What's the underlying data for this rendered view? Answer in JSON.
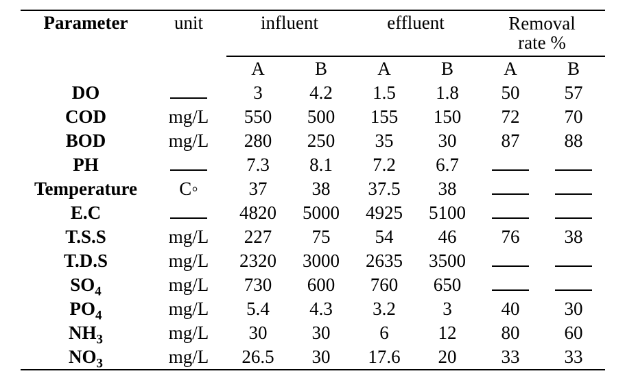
{
  "table": {
    "type": "table",
    "background_color": "#ffffff",
    "text_color": "#000000",
    "rule_color": "#000000",
    "font_family": "Times New Roman",
    "header": {
      "parameter": "Parameter",
      "unit": "unit",
      "groups": [
        {
          "label": "influent",
          "sub": [
            "A",
            "B"
          ]
        },
        {
          "label": "effluent",
          "sub": [
            "A",
            "B"
          ]
        },
        {
          "label": "Removal rate %",
          "sub": [
            "A",
            "B"
          ]
        }
      ]
    },
    "rows": [
      {
        "param": "DO",
        "param_html": "DO",
        "unit": null,
        "influent": {
          "A": "3",
          "B": "4.2"
        },
        "effluent": {
          "A": "1.5",
          "B": "1.8"
        },
        "removal": {
          "A": "50",
          "B": "57"
        }
      },
      {
        "param": "COD",
        "param_html": "COD",
        "unit": "mg/L",
        "influent": {
          "A": "550",
          "B": "500"
        },
        "effluent": {
          "A": "155",
          "B": "150"
        },
        "removal": {
          "A": "72",
          "B": "70"
        }
      },
      {
        "param": "BOD",
        "param_html": "BOD",
        "unit": "mg/L",
        "influent": {
          "A": "280",
          "B": "250"
        },
        "effluent": {
          "A": "35",
          "B": "30"
        },
        "removal": {
          "A": "87",
          "B": "88"
        }
      },
      {
        "param": "PH",
        "param_html": "PH",
        "unit": null,
        "influent": {
          "A": "7.3",
          "B": "8.1"
        },
        "effluent": {
          "A": "7.2",
          "B": "6.7"
        },
        "removal": {
          "A": null,
          "B": null
        }
      },
      {
        "param": "Temperature",
        "param_html": "Temperature",
        "unit": "C◦",
        "influent": {
          "A": "37",
          "B": "38"
        },
        "effluent": {
          "A": "37.5",
          "B": "38"
        },
        "removal": {
          "A": null,
          "B": null
        }
      },
      {
        "param": "E.C",
        "param_html": "E.C",
        "unit": null,
        "influent": {
          "A": "4820",
          "B": "5000"
        },
        "effluent": {
          "A": "4925",
          "B": "5100"
        },
        "removal": {
          "A": null,
          "B": null
        }
      },
      {
        "param": "T.S.S",
        "param_html": "T.S.S",
        "unit": "mg/L",
        "influent": {
          "A": "227",
          "B": "75"
        },
        "effluent": {
          "A": "54",
          "B": "46"
        },
        "removal": {
          "A": "76",
          "B": "38"
        }
      },
      {
        "param": "T.D.S",
        "param_html": "T.D.S",
        "unit": "mg/L",
        "influent": {
          "A": "2320",
          "B": "3000"
        },
        "effluent": {
          "A": "2635",
          "B": "3500"
        },
        "removal": {
          "A": null,
          "B": null
        }
      },
      {
        "param": "SO4",
        "param_html": "SO<sub>4</sub>",
        "unit": "mg/L",
        "influent": {
          "A": "730",
          "B": "600"
        },
        "effluent": {
          "A": "760",
          "B": "650"
        },
        "removal": {
          "A": null,
          "B": null
        }
      },
      {
        "param": "PO4",
        "param_html": "PO<sub>4</sub>",
        "unit": "mg/L",
        "influent": {
          "A": "5.4",
          "B": "4.3"
        },
        "effluent": {
          "A": "3.2",
          "B": "3"
        },
        "removal": {
          "A": "40",
          "B": "30"
        }
      },
      {
        "param": "NH3",
        "param_html": "NH<sub>3</sub>",
        "unit": "mg/L",
        "influent": {
          "A": "30",
          "B": "30"
        },
        "effluent": {
          "A": "6",
          "B": "12"
        },
        "removal": {
          "A": "80",
          "B": "60"
        }
      },
      {
        "param": "NO3",
        "param_html": "NO<sub>3</sub>",
        "unit": "mg/L",
        "influent": {
          "A": "26.5",
          "B": "30"
        },
        "effluent": {
          "A": "17.6",
          "B": "20"
        },
        "removal": {
          "A": "33",
          "B": "33"
        }
      }
    ]
  }
}
